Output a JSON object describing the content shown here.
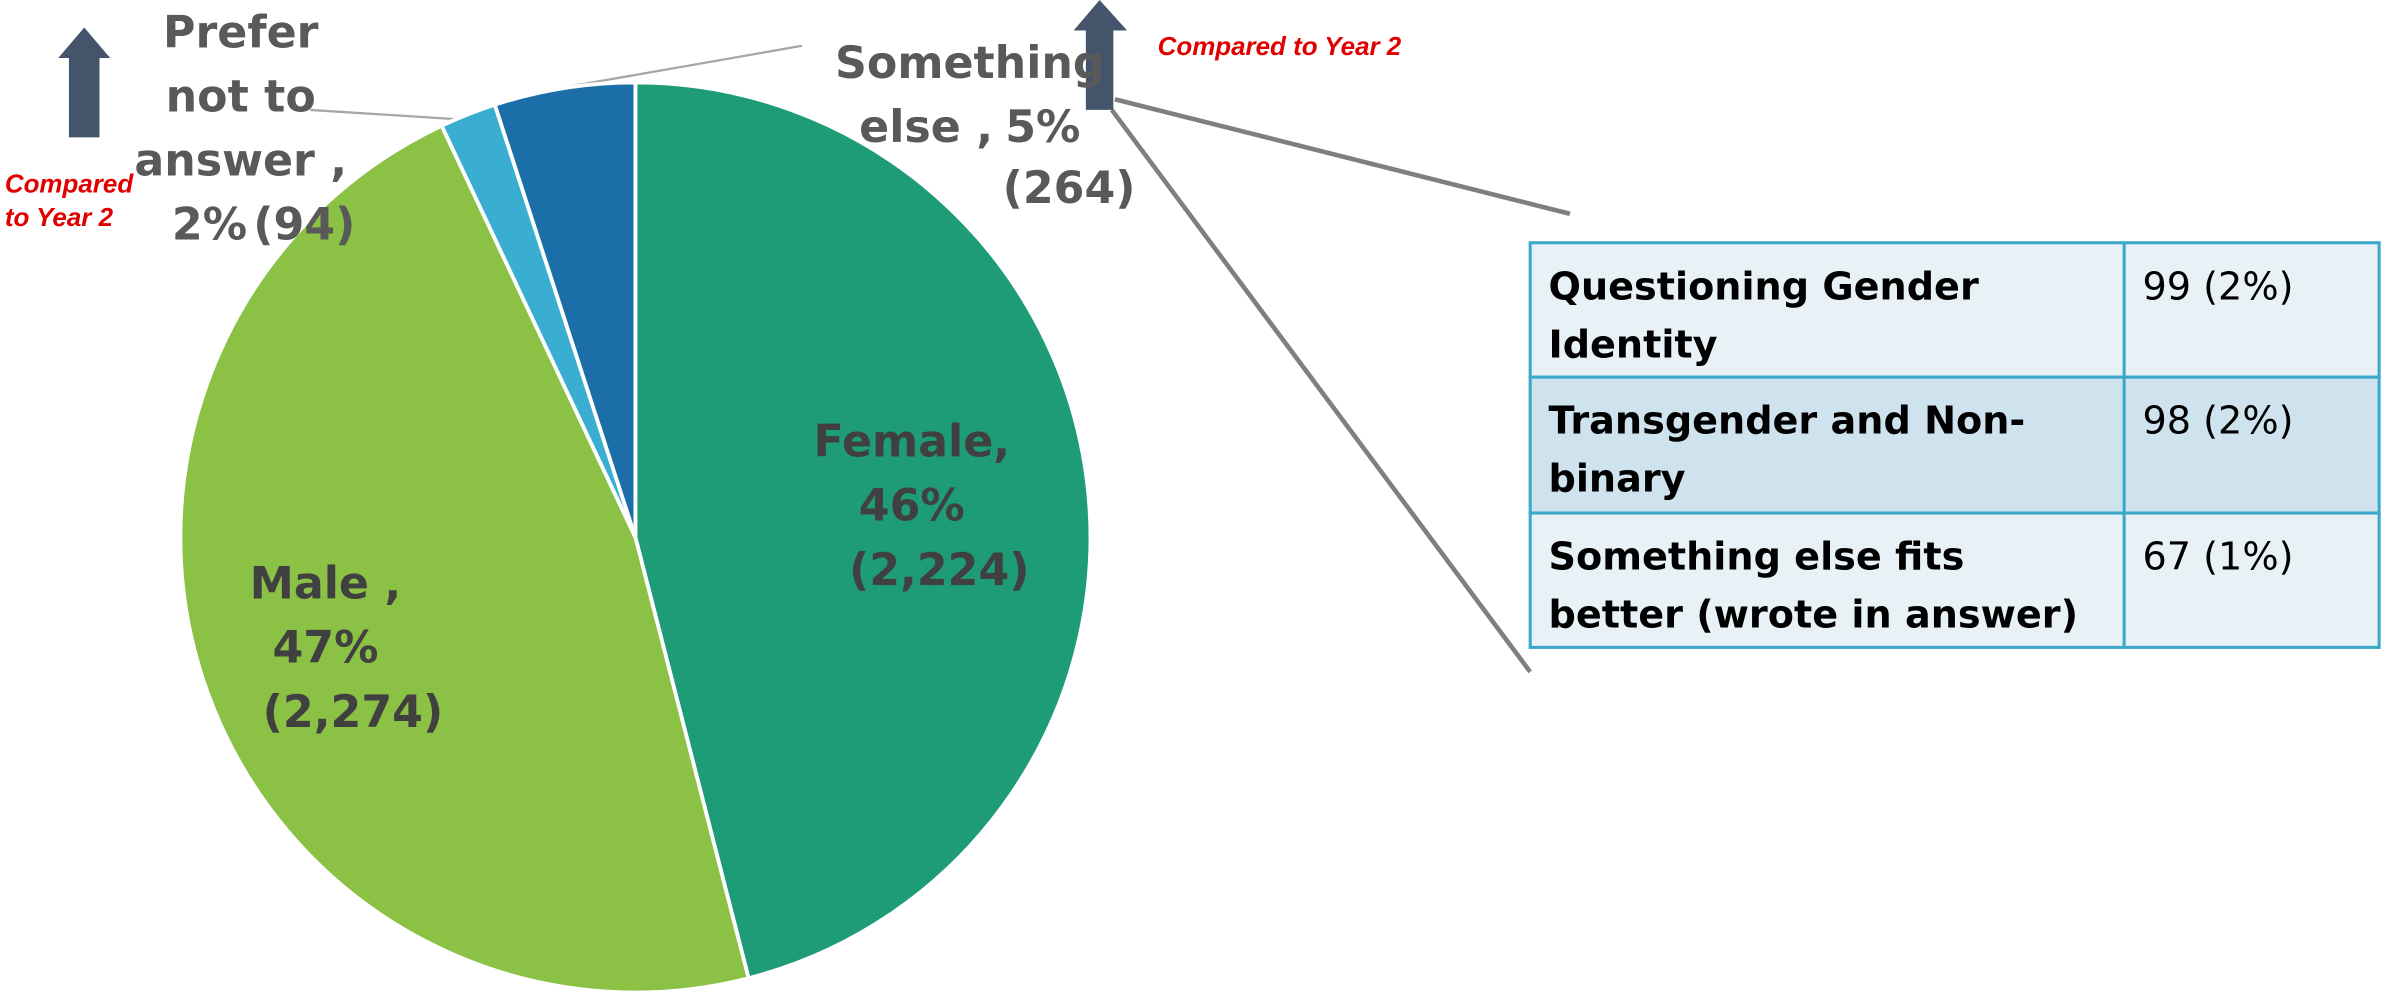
{
  "chart_data": {
    "type": "pie",
    "categories": [
      "Female,",
      "Male ,",
      "Prefer not to answer ,",
      "Something else ,"
    ],
    "values": [
      46,
      47,
      2,
      5
    ],
    "value_labels": [
      "46%",
      "47%",
      "2%",
      "5%"
    ],
    "count_labels": [
      "(2,224)",
      "(2,274)",
      "(94)",
      "(264)"
    ],
    "colors": [
      "#1e9b77",
      "#8bc145",
      "#39aed0",
      "#1c6ea8"
    ],
    "annotations": [
      "Compared to Year 2",
      "Compared to Year 2"
    ]
  },
  "table": {
    "rows": [
      [
        "Questioning Gender Identity",
        "99 (2%)"
      ],
      [
        "Transgender and Non-binary",
        "98 (2%)"
      ],
      [
        "Something else fits better (wrote in answer)",
        "67 (1%)"
      ]
    ]
  }
}
